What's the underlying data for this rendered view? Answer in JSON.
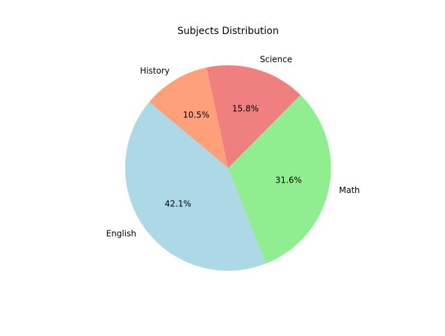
{
  "chart_data": {
    "type": "pie",
    "title": "Subjects Distribution",
    "categories": [
      "English",
      "Math",
      "Science",
      "History"
    ],
    "values": [
      8,
      6,
      3,
      2
    ],
    "percent_labels": [
      "42.1%",
      "31.6%",
      "15.8%",
      "10.5%"
    ],
    "colors": [
      "#add8e6",
      "#90ee90",
      "#f08080",
      "#ffa07a"
    ],
    "start_angle": 140,
    "direction": "counterclockwise",
    "legend": "none",
    "grid": false
  }
}
